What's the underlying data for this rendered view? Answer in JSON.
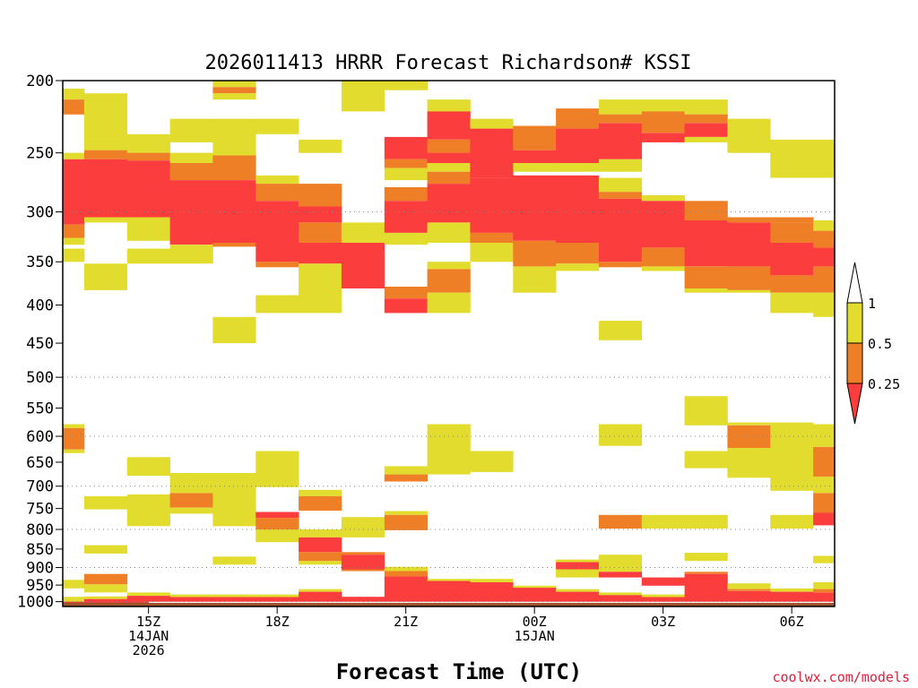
{
  "chart_data": {
    "type": "heatmap",
    "title": "2026011413 HRRR Forecast Richardson# KSSI",
    "xlabel": "Forecast Time (UTC)",
    "ylabel": "",
    "credit": "coolwx.com/models",
    "y_scale": "log",
    "ylim": [
      1015,
      200
    ],
    "xlim": [
      13.0,
      31.0
    ],
    "y_ticks": [
      200,
      250,
      300,
      350,
      400,
      450,
      500,
      550,
      600,
      650,
      700,
      750,
      800,
      850,
      900,
      950,
      1000
    ],
    "y_gridlines": [
      300,
      500,
      600,
      700,
      800,
      900,
      1000
    ],
    "x_ticks": [
      {
        "x": 15,
        "lines": [
          "15Z",
          "14JAN",
          "2026"
        ]
      },
      {
        "x": 18,
        "lines": [
          "18Z"
        ]
      },
      {
        "x": 21,
        "lines": [
          "21Z"
        ]
      },
      {
        "x": 24,
        "lines": [
          "00Z",
          "15JAN"
        ]
      },
      {
        "x": 27,
        "lines": [
          "03Z"
        ]
      },
      {
        "x": 30,
        "lines": [
          "06Z"
        ]
      }
    ],
    "ground_color": "#a0522d",
    "colorbar": {
      "levels": [
        "1",
        "0.5",
        "0.25"
      ],
      "colors": [
        "#e2dc2e",
        "#ef7f27",
        "#fb3d3d"
      ]
    },
    "categories": [
      "Ri < 0.25",
      "0.25 - 0.5",
      "0.5 - 1"
    ],
    "cells": [
      [
        13.0,
        13.5,
        205,
        212,
        3
      ],
      [
        13.0,
        13.5,
        212,
        222,
        2
      ],
      [
        13.0,
        13.5,
        250,
        255,
        3
      ],
      [
        13.0,
        13.5,
        255,
        312,
        1
      ],
      [
        13.0,
        13.5,
        312,
        325,
        2
      ],
      [
        13.0,
        13.5,
        325,
        332,
        3
      ],
      [
        13.0,
        13.5,
        336,
        350,
        3
      ],
      [
        13.0,
        13.5,
        578,
        585,
        3
      ],
      [
        13.0,
        13.5,
        585,
        625,
        2
      ],
      [
        13.0,
        13.5,
        625,
        632,
        3
      ],
      [
        13.0,
        13.5,
        935,
        960,
        3
      ],
      [
        13.0,
        13.5,
        985,
        1000,
        3
      ],
      [
        13.0,
        13.5,
        1000,
        1005,
        1
      ],
      [
        13.5,
        14.5,
        208,
        248,
        3
      ],
      [
        13.5,
        14.5,
        248,
        255,
        2
      ],
      [
        13.5,
        14.5,
        255,
        305,
        1
      ],
      [
        13.5,
        14.5,
        305,
        310,
        3
      ],
      [
        13.5,
        14.5,
        352,
        382,
        3
      ],
      [
        13.5,
        14.5,
        722,
        752,
        3
      ],
      [
        13.5,
        14.5,
        840,
        862,
        3
      ],
      [
        13.5,
        14.5,
        918,
        948,
        2
      ],
      [
        13.5,
        14.5,
        948,
        972,
        3
      ],
      [
        13.5,
        14.5,
        984,
        992,
        3
      ],
      [
        13.5,
        14.5,
        992,
        1005,
        1
      ],
      [
        14.5,
        15.5,
        236,
        250,
        3
      ],
      [
        14.5,
        15.5,
        250,
        256,
        2
      ],
      [
        14.5,
        15.5,
        256,
        305,
        1
      ],
      [
        14.5,
        15.5,
        305,
        328,
        3
      ],
      [
        14.5,
        15.5,
        336,
        352,
        3
      ],
      [
        14.5,
        15.5,
        640,
        678,
        3
      ],
      [
        14.5,
        15.5,
        718,
        792,
        3
      ],
      [
        14.5,
        15.5,
        972,
        982,
        3
      ],
      [
        14.5,
        15.5,
        982,
        1005,
        1
      ],
      [
        15.5,
        16.5,
        225,
        242,
        3
      ],
      [
        15.5,
        16.5,
        250,
        258,
        3
      ],
      [
        15.5,
        16.5,
        258,
        272,
        2
      ],
      [
        15.5,
        16.5,
        272,
        332,
        1
      ],
      [
        15.5,
        16.5,
        332,
        352,
        3
      ],
      [
        15.5,
        16.5,
        672,
        715,
        3
      ],
      [
        15.5,
        16.5,
        715,
        748,
        2
      ],
      [
        15.5,
        16.5,
        748,
        762,
        3
      ],
      [
        15.5,
        16.5,
        978,
        986,
        3
      ],
      [
        15.5,
        16.5,
        986,
        1005,
        1
      ],
      [
        16.5,
        17.5,
        200,
        204,
        3
      ],
      [
        16.5,
        17.5,
        204,
        208,
        2
      ],
      [
        16.5,
        17.5,
        208,
        212,
        3
      ],
      [
        16.5,
        17.5,
        225,
        252,
        3
      ],
      [
        16.5,
        17.5,
        252,
        272,
        2
      ],
      [
        16.5,
        17.5,
        272,
        330,
        1
      ],
      [
        16.5,
        17.5,
        330,
        334,
        2
      ],
      [
        16.5,
        17.5,
        415,
        450,
        3
      ],
      [
        16.5,
        17.5,
        672,
        792,
        3
      ],
      [
        16.5,
        17.5,
        870,
        892,
        3
      ],
      [
        16.5,
        17.5,
        978,
        986,
        3
      ],
      [
        16.5,
        17.5,
        986,
        1005,
        1
      ],
      [
        17.5,
        18.5,
        225,
        236,
        3
      ],
      [
        17.5,
        18.5,
        268,
        275,
        3
      ],
      [
        17.5,
        18.5,
        275,
        290,
        2
      ],
      [
        17.5,
        18.5,
        290,
        350,
        1
      ],
      [
        17.5,
        18.5,
        350,
        356,
        2
      ],
      [
        17.5,
        18.5,
        388,
        410,
        3
      ],
      [
        17.5,
        18.5,
        628,
        702,
        3
      ],
      [
        17.5,
        18.5,
        758,
        772,
        1
      ],
      [
        17.5,
        18.5,
        772,
        800,
        2
      ],
      [
        17.5,
        18.5,
        800,
        832,
        3
      ],
      [
        17.5,
        18.5,
        978,
        986,
        3
      ],
      [
        17.5,
        18.5,
        986,
        1005,
        1
      ],
      [
        18.5,
        19.5,
        240,
        250,
        3
      ],
      [
        18.5,
        19.5,
        275,
        295,
        2
      ],
      [
        18.5,
        19.5,
        295,
        310,
        1
      ],
      [
        18.5,
        19.5,
        310,
        330,
        2
      ],
      [
        18.5,
        19.5,
        330,
        352,
        1
      ],
      [
        18.5,
        19.5,
        352,
        410,
        3
      ],
      [
        18.5,
        19.5,
        708,
        722,
        3
      ],
      [
        18.5,
        19.5,
        722,
        755,
        2
      ],
      [
        18.5,
        19.5,
        800,
        820,
        3
      ],
      [
        18.5,
        19.5,
        820,
        858,
        1
      ],
      [
        18.5,
        19.5,
        858,
        882,
        2
      ],
      [
        18.5,
        19.5,
        882,
        892,
        3
      ],
      [
        18.5,
        19.5,
        962,
        970,
        3
      ],
      [
        18.5,
        19.5,
        970,
        1005,
        1
      ],
      [
        19.5,
        20.5,
        200,
        220,
        3
      ],
      [
        19.5,
        20.5,
        310,
        330,
        3
      ],
      [
        19.5,
        20.5,
        330,
        380,
        1
      ],
      [
        19.5,
        20.5,
        770,
        820,
        3
      ],
      [
        19.5,
        20.5,
        858,
        865,
        2
      ],
      [
        19.5,
        20.5,
        865,
        905,
        1
      ],
      [
        19.5,
        20.5,
        905,
        910,
        2
      ],
      [
        19.5,
        20.5,
        985,
        1005,
        1
      ],
      [
        20.5,
        21.5,
        200,
        206,
        3
      ],
      [
        20.5,
        21.5,
        238,
        255,
        1
      ],
      [
        20.5,
        21.5,
        255,
        262,
        2
      ],
      [
        20.5,
        21.5,
        262,
        272,
        3
      ],
      [
        20.5,
        21.5,
        278,
        290,
        2
      ],
      [
        20.5,
        21.5,
        290,
        320,
        1
      ],
      [
        20.5,
        21.5,
        320,
        332,
        3
      ],
      [
        20.5,
        21.5,
        378,
        392,
        2
      ],
      [
        20.5,
        21.5,
        392,
        410,
        1
      ],
      [
        20.5,
        21.5,
        658,
        675,
        3
      ],
      [
        20.5,
        21.5,
        675,
        690,
        2
      ],
      [
        20.5,
        21.5,
        756,
        765,
        3
      ],
      [
        20.5,
        21.5,
        765,
        802,
        2
      ],
      [
        20.5,
        21.5,
        898,
        910,
        3
      ],
      [
        20.5,
        21.5,
        910,
        925,
        2
      ],
      [
        20.5,
        21.5,
        925,
        1005,
        1
      ],
      [
        21.5,
        22.5,
        212,
        220,
        3
      ],
      [
        21.5,
        22.5,
        220,
        240,
        1
      ],
      [
        21.5,
        22.5,
        240,
        250,
        2
      ],
      [
        21.5,
        22.5,
        250,
        258,
        1
      ],
      [
        21.5,
        22.5,
        258,
        265,
        3
      ],
      [
        21.5,
        22.5,
        265,
        275,
        2
      ],
      [
        21.5,
        22.5,
        275,
        310,
        1
      ],
      [
        21.5,
        22.5,
        310,
        330,
        3
      ],
      [
        21.5,
        22.5,
        350,
        358,
        3
      ],
      [
        21.5,
        22.5,
        358,
        385,
        2
      ],
      [
        21.5,
        22.5,
        385,
        410,
        3
      ],
      [
        21.5,
        22.5,
        578,
        675,
        3
      ],
      [
        21.5,
        22.5,
        932,
        938,
        3
      ],
      [
        21.5,
        22.5,
        938,
        1005,
        1
      ],
      [
        22.5,
        23.5,
        225,
        232,
        3
      ],
      [
        22.5,
        23.5,
        232,
        270,
        1
      ],
      [
        22.5,
        23.5,
        270,
        320,
        1
      ],
      [
        22.5,
        23.5,
        320,
        330,
        2
      ],
      [
        22.5,
        23.5,
        330,
        350,
        3
      ],
      [
        22.5,
        23.5,
        628,
        670,
        3
      ],
      [
        22.5,
        23.5,
        932,
        942,
        3
      ],
      [
        22.5,
        23.5,
        942,
        1005,
        1
      ],
      [
        23.5,
        24.5,
        230,
        248,
        2
      ],
      [
        23.5,
        24.5,
        248,
        258,
        1
      ],
      [
        23.5,
        24.5,
        258,
        265,
        3
      ],
      [
        23.5,
        24.5,
        268,
        328,
        1
      ],
      [
        23.5,
        24.5,
        328,
        355,
        2
      ],
      [
        23.5,
        24.5,
        355,
        385,
        3
      ],
      [
        23.5,
        24.5,
        952,
        958,
        3
      ],
      [
        23.5,
        24.5,
        958,
        1005,
        1
      ],
      [
        24.5,
        25.5,
        218,
        232,
        2
      ],
      [
        24.5,
        25.5,
        232,
        258,
        1
      ],
      [
        24.5,
        25.5,
        258,
        265,
        3
      ],
      [
        24.5,
        25.5,
        268,
        330,
        1
      ],
      [
        24.5,
        25.5,
        330,
        352,
        2
      ],
      [
        24.5,
        25.5,
        352,
        360,
        3
      ],
      [
        24.5,
        25.5,
        878,
        885,
        3
      ],
      [
        24.5,
        25.5,
        885,
        905,
        1
      ],
      [
        24.5,
        25.5,
        905,
        928,
        3
      ],
      [
        24.5,
        25.5,
        962,
        970,
        3
      ],
      [
        24.5,
        25.5,
        970,
        1005,
        1
      ],
      [
        25.5,
        26.5,
        212,
        222,
        3
      ],
      [
        25.5,
        26.5,
        222,
        228,
        2
      ],
      [
        25.5,
        26.5,
        228,
        255,
        1
      ],
      [
        25.5,
        26.5,
        255,
        265,
        3
      ],
      [
        25.5,
        26.5,
        270,
        282,
        3
      ],
      [
        25.5,
        26.5,
        282,
        288,
        2
      ],
      [
        25.5,
        26.5,
        288,
        350,
        1
      ],
      [
        25.5,
        26.5,
        350,
        356,
        2
      ],
      [
        25.5,
        26.5,
        420,
        446,
        3
      ],
      [
        25.5,
        26.5,
        578,
        618,
        3
      ],
      [
        25.5,
        26.5,
        765,
        798,
        2
      ],
      [
        25.5,
        26.5,
        865,
        912,
        3
      ],
      [
        25.5,
        26.5,
        912,
        928,
        1
      ],
      [
        25.5,
        26.5,
        972,
        980,
        3
      ],
      [
        25.5,
        26.5,
        980,
        1005,
        1
      ],
      [
        26.5,
        27.5,
        212,
        220,
        3
      ],
      [
        26.5,
        27.5,
        220,
        235,
        2
      ],
      [
        26.5,
        27.5,
        235,
        242,
        1
      ],
      [
        26.5,
        27.5,
        285,
        290,
        3
      ],
      [
        26.5,
        27.5,
        290,
        335,
        1
      ],
      [
        26.5,
        27.5,
        335,
        355,
        2
      ],
      [
        26.5,
        27.5,
        355,
        360,
        3
      ],
      [
        26.5,
        27.5,
        765,
        798,
        3
      ],
      [
        26.5,
        27.5,
        928,
        952,
        1
      ],
      [
        26.5,
        27.5,
        978,
        986,
        3
      ],
      [
        26.5,
        27.5,
        986,
        1005,
        1
      ],
      [
        27.5,
        28.5,
        212,
        222,
        3
      ],
      [
        27.5,
        28.5,
        222,
        228,
        2
      ],
      [
        27.5,
        28.5,
        228,
        238,
        1
      ],
      [
        27.5,
        28.5,
        238,
        242,
        3
      ],
      [
        27.5,
        28.5,
        290,
        308,
        2
      ],
      [
        27.5,
        28.5,
        308,
        355,
        1
      ],
      [
        27.5,
        28.5,
        355,
        380,
        2
      ],
      [
        27.5,
        28.5,
        380,
        385,
        3
      ],
      [
        27.5,
        28.5,
        530,
        580,
        3
      ],
      [
        27.5,
        28.5,
        628,
        662,
        3
      ],
      [
        27.5,
        28.5,
        765,
        798,
        3
      ],
      [
        27.5,
        28.5,
        860,
        882,
        3
      ],
      [
        27.5,
        28.5,
        912,
        918,
        2
      ],
      [
        27.5,
        28.5,
        918,
        1005,
        1
      ],
      [
        28.5,
        29.5,
        225,
        250,
        3
      ],
      [
        28.5,
        29.5,
        305,
        310,
        2
      ],
      [
        28.5,
        29.5,
        310,
        355,
        1
      ],
      [
        28.5,
        29.5,
        355,
        382,
        2
      ],
      [
        28.5,
        29.5,
        382,
        385,
        3
      ],
      [
        28.5,
        29.5,
        575,
        580,
        3
      ],
      [
        28.5,
        29.5,
        580,
        622,
        2
      ],
      [
        28.5,
        29.5,
        622,
        682,
        3
      ],
      [
        28.5,
        29.5,
        945,
        962,
        3
      ],
      [
        28.5,
        29.5,
        962,
        968,
        2
      ],
      [
        28.5,
        29.5,
        968,
        1005,
        1
      ],
      [
        29.5,
        30.5,
        240,
        270,
        3
      ],
      [
        29.5,
        30.5,
        305,
        310,
        2
      ],
      [
        29.5,
        30.5,
        310,
        330,
        2
      ],
      [
        29.5,
        30.5,
        330,
        365,
        1
      ],
      [
        29.5,
        30.5,
        365,
        385,
        2
      ],
      [
        29.5,
        30.5,
        385,
        410,
        3
      ],
      [
        29.5,
        30.5,
        575,
        710,
        3
      ],
      [
        29.5,
        30.5,
        765,
        798,
        3
      ],
      [
        29.5,
        30.5,
        960,
        970,
        3
      ],
      [
        29.5,
        30.5,
        970,
        1005,
        1
      ],
      [
        30.5,
        31.0,
        240,
        270,
        3
      ],
      [
        30.5,
        31.0,
        308,
        318,
        3
      ],
      [
        30.5,
        31.0,
        318,
        335,
        2
      ],
      [
        30.5,
        31.0,
        335,
        355,
        1
      ],
      [
        30.5,
        31.0,
        355,
        385,
        2
      ],
      [
        30.5,
        31.0,
        385,
        415,
        3
      ],
      [
        30.5,
        31.0,
        578,
        620,
        3
      ],
      [
        30.5,
        31.0,
        620,
        680,
        2
      ],
      [
        30.5,
        31.0,
        680,
        715,
        3
      ],
      [
        30.5,
        31.0,
        715,
        760,
        2
      ],
      [
        30.5,
        31.0,
        760,
        790,
        1
      ],
      [
        30.5,
        31.0,
        868,
        888,
        3
      ],
      [
        30.5,
        31.0,
        942,
        962,
        3
      ],
      [
        30.5,
        31.0,
        962,
        972,
        2
      ],
      [
        30.5,
        31.0,
        972,
        1005,
        1
      ]
    ]
  }
}
